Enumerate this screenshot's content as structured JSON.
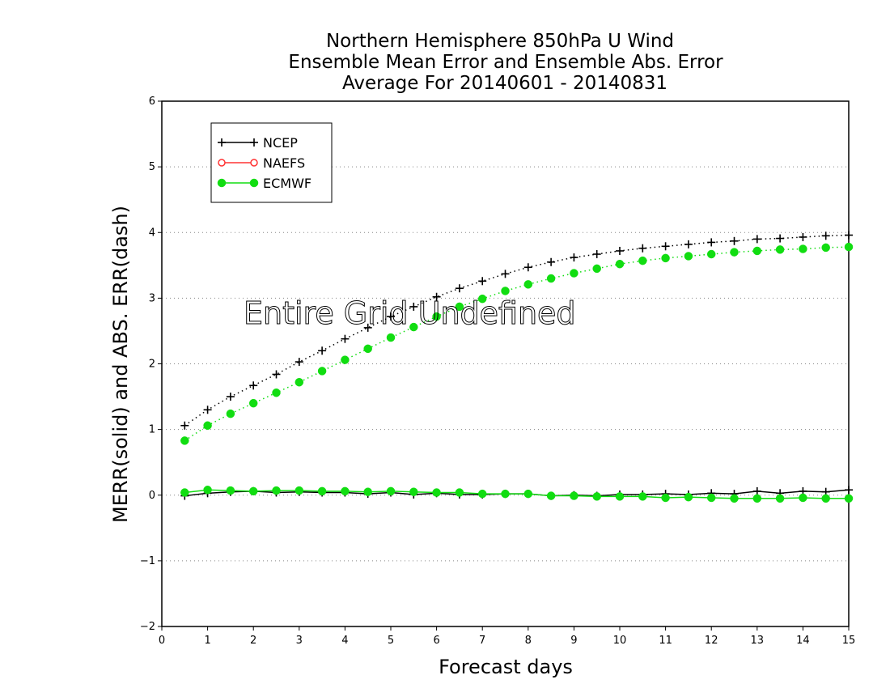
{
  "chart_data": {
    "type": "line",
    "title_lines": [
      "Northern Hemisphere 850hPa U Wind",
      "Ensemble Mean Error and Ensemble Abs. Error",
      "Average For 20140601 - 20140831"
    ],
    "xlabel": "Forecast days",
    "ylabel": "MERR(solid) and ABS. ERR(dash)",
    "annotation": "Entire Grid Undefined",
    "xlim": [
      0,
      15
    ],
    "ylim": [
      -2,
      6
    ],
    "xticks": [
      0,
      1,
      2,
      3,
      4,
      5,
      6,
      7,
      8,
      9,
      10,
      11,
      12,
      13,
      14,
      15
    ],
    "yticks": [
      -2,
      -1,
      0,
      1,
      2,
      3,
      4,
      5,
      6
    ],
    "xtick_labels": [
      "0",
      "1",
      "2",
      "3",
      "4",
      "5",
      "6",
      "7",
      "8",
      "9",
      "10",
      "11",
      "12",
      "13",
      "14",
      "15"
    ],
    "ytick_labels": [
      "−2",
      "−1",
      "0",
      "1",
      "2",
      "3",
      "4",
      "5",
      "6"
    ],
    "grid": "horizontal dotted",
    "legend_position": "top-left",
    "x": [
      0.5,
      1,
      1.5,
      2,
      2.5,
      3,
      3.5,
      4,
      4.5,
      5,
      5.5,
      6,
      6.5,
      7,
      7.5,
      8,
      8.5,
      9,
      9.5,
      10,
      10.5,
      11,
      11.5,
      12,
      12.5,
      13,
      13.5,
      14,
      14.5,
      15
    ],
    "series": [
      {
        "name": "NCEP",
        "color": "#000000",
        "marker": "plus",
        "mean_error": [
          -0.01,
          0.03,
          0.05,
          0.06,
          0.04,
          0.05,
          0.04,
          0.04,
          0.02,
          0.04,
          0.01,
          0.03,
          0.01,
          0.01,
          0.02,
          0.02,
          -0.01,
          0.0,
          -0.01,
          0.01,
          0.01,
          0.02,
          0.01,
          0.03,
          0.02,
          0.06,
          0.03,
          0.06,
          0.05,
          0.08
        ],
        "abs_error": [
          1.06,
          1.3,
          1.5,
          1.67,
          1.84,
          2.03,
          2.2,
          2.38,
          2.55,
          2.72,
          2.87,
          3.02,
          3.15,
          3.26,
          3.37,
          3.47,
          3.55,
          3.62,
          3.67,
          3.72,
          3.76,
          3.79,
          3.82,
          3.85,
          3.87,
          3.9,
          3.91,
          3.93,
          3.95,
          3.96
        ]
      },
      {
        "name": "NAEFS",
        "color": "#ff3333",
        "marker": "open-circle",
        "mean_error": [],
        "abs_error": []
      },
      {
        "name": "ECMWF",
        "color": "#11dd11",
        "marker": "filled-circle",
        "mean_error": [
          0.04,
          0.08,
          0.07,
          0.06,
          0.07,
          0.07,
          0.06,
          0.06,
          0.05,
          0.06,
          0.05,
          0.04,
          0.04,
          0.02,
          0.02,
          0.02,
          -0.01,
          -0.01,
          -0.02,
          -0.02,
          -0.02,
          -0.04,
          -0.03,
          -0.04,
          -0.05,
          -0.05,
          -0.05,
          -0.04,
          -0.05,
          -0.05
        ],
        "abs_error": [
          0.83,
          1.06,
          1.24,
          1.4,
          1.56,
          1.72,
          1.89,
          2.06,
          2.23,
          2.4,
          2.56,
          2.72,
          2.87,
          2.99,
          3.11,
          3.21,
          3.3,
          3.38,
          3.45,
          3.52,
          3.57,
          3.61,
          3.64,
          3.67,
          3.7,
          3.72,
          3.74,
          3.75,
          3.77,
          3.78
        ]
      }
    ]
  }
}
